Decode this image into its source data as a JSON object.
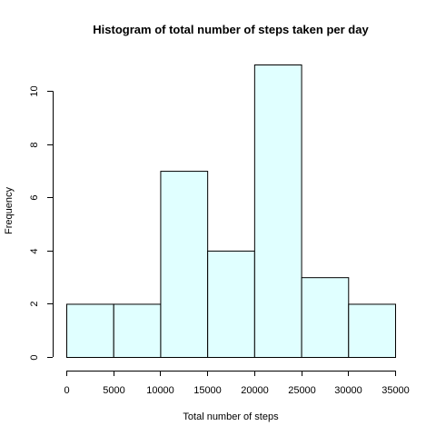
{
  "chart_data": {
    "type": "bar",
    "subtype": "histogram",
    "title": "Histogram of total number of steps taken per day",
    "xlabel": "Total number of steps",
    "ylabel": "Frequency",
    "bins": [
      {
        "start": 0,
        "end": 5000,
        "count": 2
      },
      {
        "start": 5000,
        "end": 10000,
        "count": 2
      },
      {
        "start": 10000,
        "end": 15000,
        "count": 7
      },
      {
        "start": 15000,
        "end": 20000,
        "count": 4
      },
      {
        "start": 20000,
        "end": 25000,
        "count": 11
      },
      {
        "start": 25000,
        "end": 30000,
        "count": 3
      },
      {
        "start": 30000,
        "end": 35000,
        "count": 2
      }
    ],
    "xlim": [
      0,
      35000
    ],
    "ylim": [
      0,
      11
    ],
    "xticks": [
      0,
      5000,
      10000,
      15000,
      20000,
      25000,
      30000,
      35000
    ],
    "xtick_labels": [
      "0",
      "5000",
      "10000",
      "15000",
      "20000",
      "25000",
      "30000",
      "35000"
    ],
    "yticks": [
      0,
      2,
      4,
      6,
      8,
      10
    ],
    "ytick_labels": [
      "0",
      "2",
      "4",
      "6",
      "8",
      "10"
    ],
    "bar_color": "#E0FFFF",
    "edge_color": "#000000",
    "grid": false,
    "legend": "none"
  }
}
